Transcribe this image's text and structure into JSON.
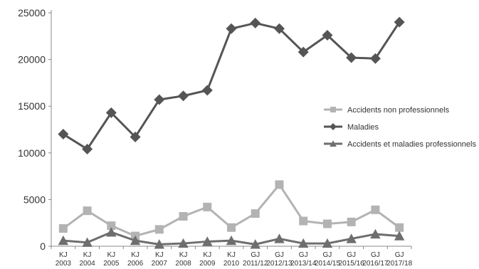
{
  "chart_data": {
    "type": "line",
    "title": "",
    "xlabel": "",
    "ylabel": "",
    "ylim": [
      0,
      25000
    ],
    "yticks": [
      0,
      5000,
      10000,
      15000,
      20000,
      25000
    ],
    "grid": false,
    "legend_position": "right",
    "categories": [
      [
        "KJ",
        "2003"
      ],
      [
        "KJ",
        "2004"
      ],
      [
        "KJ",
        "2005"
      ],
      [
        "KJ",
        "2006"
      ],
      [
        "KJ",
        "2007"
      ],
      [
        "KJ",
        "2008"
      ],
      [
        "KJ",
        "2009"
      ],
      [
        "KJ",
        "2010"
      ],
      [
        "GJ",
        "2011/12"
      ],
      [
        "GJ",
        "2012/13"
      ],
      [
        "GJ",
        "2013/14"
      ],
      [
        "GJ",
        "2014/15"
      ],
      [
        "GJ",
        "2015/16"
      ],
      [
        "GJ",
        "2016/17"
      ],
      [
        "GJ",
        "2017/18"
      ]
    ],
    "series": [
      {
        "name": "Accidents non professionnels",
        "color": "#b3b3b3",
        "marker": "square",
        "values": [
          1900,
          3800,
          2200,
          1100,
          1800,
          3200,
          4200,
          2000,
          3500,
          6600,
          2700,
          2400,
          2600,
          3900,
          2000
        ]
      },
      {
        "name": "Maladies",
        "color": "#555555",
        "marker": "diamond",
        "values": [
          12000,
          10400,
          14300,
          11700,
          15700,
          16100,
          16700,
          23300,
          23900,
          23300,
          20800,
          22600,
          20200,
          20100,
          24000
        ]
      },
      {
        "name": "Accidents et maladies professionnels",
        "color": "#6e6e6e",
        "marker": "triangle",
        "values": [
          600,
          400,
          1500,
          600,
          200,
          300,
          500,
          600,
          200,
          800,
          300,
          300,
          800,
          1300,
          1100
        ]
      }
    ]
  }
}
